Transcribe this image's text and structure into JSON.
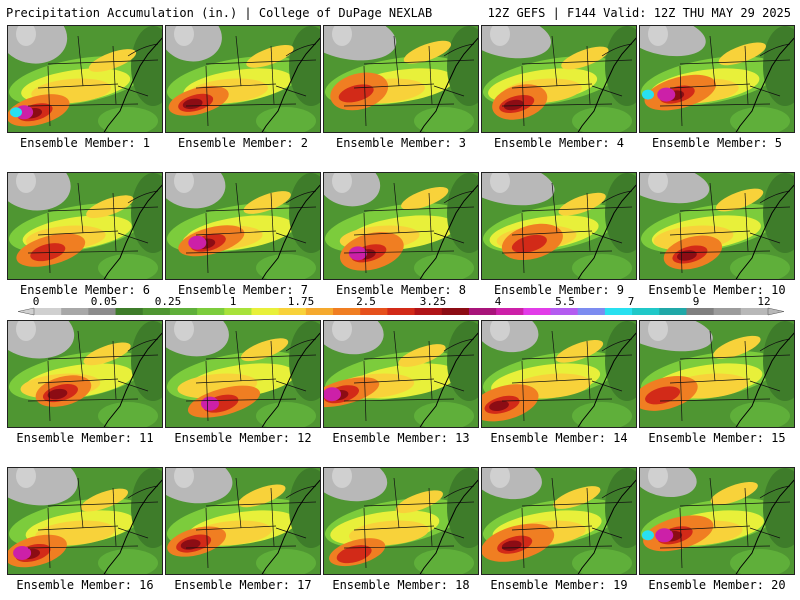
{
  "header": {
    "title": "Precipitation Accumulation (in.) | College of DuPage NEXLAB",
    "run_info": "12Z GEFS | F144 Valid: 12Z THU MAY 29 2025"
  },
  "panels": [
    {
      "label": "Ensemble Member: 1"
    },
    {
      "label": "Ensemble Member: 2"
    },
    {
      "label": "Ensemble Member: 3"
    },
    {
      "label": "Ensemble Member: 4"
    },
    {
      "label": "Ensemble Member: 5"
    },
    {
      "label": "Ensemble Member: 6"
    },
    {
      "label": "Ensemble Member: 7"
    },
    {
      "label": "Ensemble Member: 8"
    },
    {
      "label": "Ensemble Member: 9"
    },
    {
      "label": "Ensemble Member: 10"
    },
    {
      "label": "Ensemble Member: 11"
    },
    {
      "label": "Ensemble Member: 12"
    },
    {
      "label": "Ensemble Member: 13"
    },
    {
      "label": "Ensemble Member: 14"
    },
    {
      "label": "Ensemble Member: 15"
    },
    {
      "label": "Ensemble Member: 16"
    },
    {
      "label": "Ensemble Member: 17"
    },
    {
      "label": "Ensemble Member: 18"
    },
    {
      "label": "Ensemble Member: 19"
    },
    {
      "label": "Ensemble Member: 20"
    }
  ],
  "colorbar": {
    "tick_labels": [
      "0",
      "0.05",
      "0.25",
      "1",
      "1.75",
      "2.5",
      "3.25",
      "4",
      "5.5",
      "7",
      "9",
      "12"
    ],
    "colors": [
      "#d0d0d0",
      "#a8a8a8",
      "#8c8c8c",
      "#3e7c2a",
      "#4f9632",
      "#5faf3a",
      "#7ccc3c",
      "#a8e23a",
      "#e8f03a",
      "#f8d23a",
      "#f5a92e",
      "#f07e22",
      "#e6501c",
      "#d22a18",
      "#b01418",
      "#8c0c14",
      "#a8147a",
      "#cc20a8",
      "#e23ce8",
      "#b45cf0",
      "#7c8cf0",
      "#28e0f0",
      "#20c8c8",
      "#20a8a8",
      "#808080",
      "#9c9c9c",
      "#b8b8b8"
    ]
  }
}
